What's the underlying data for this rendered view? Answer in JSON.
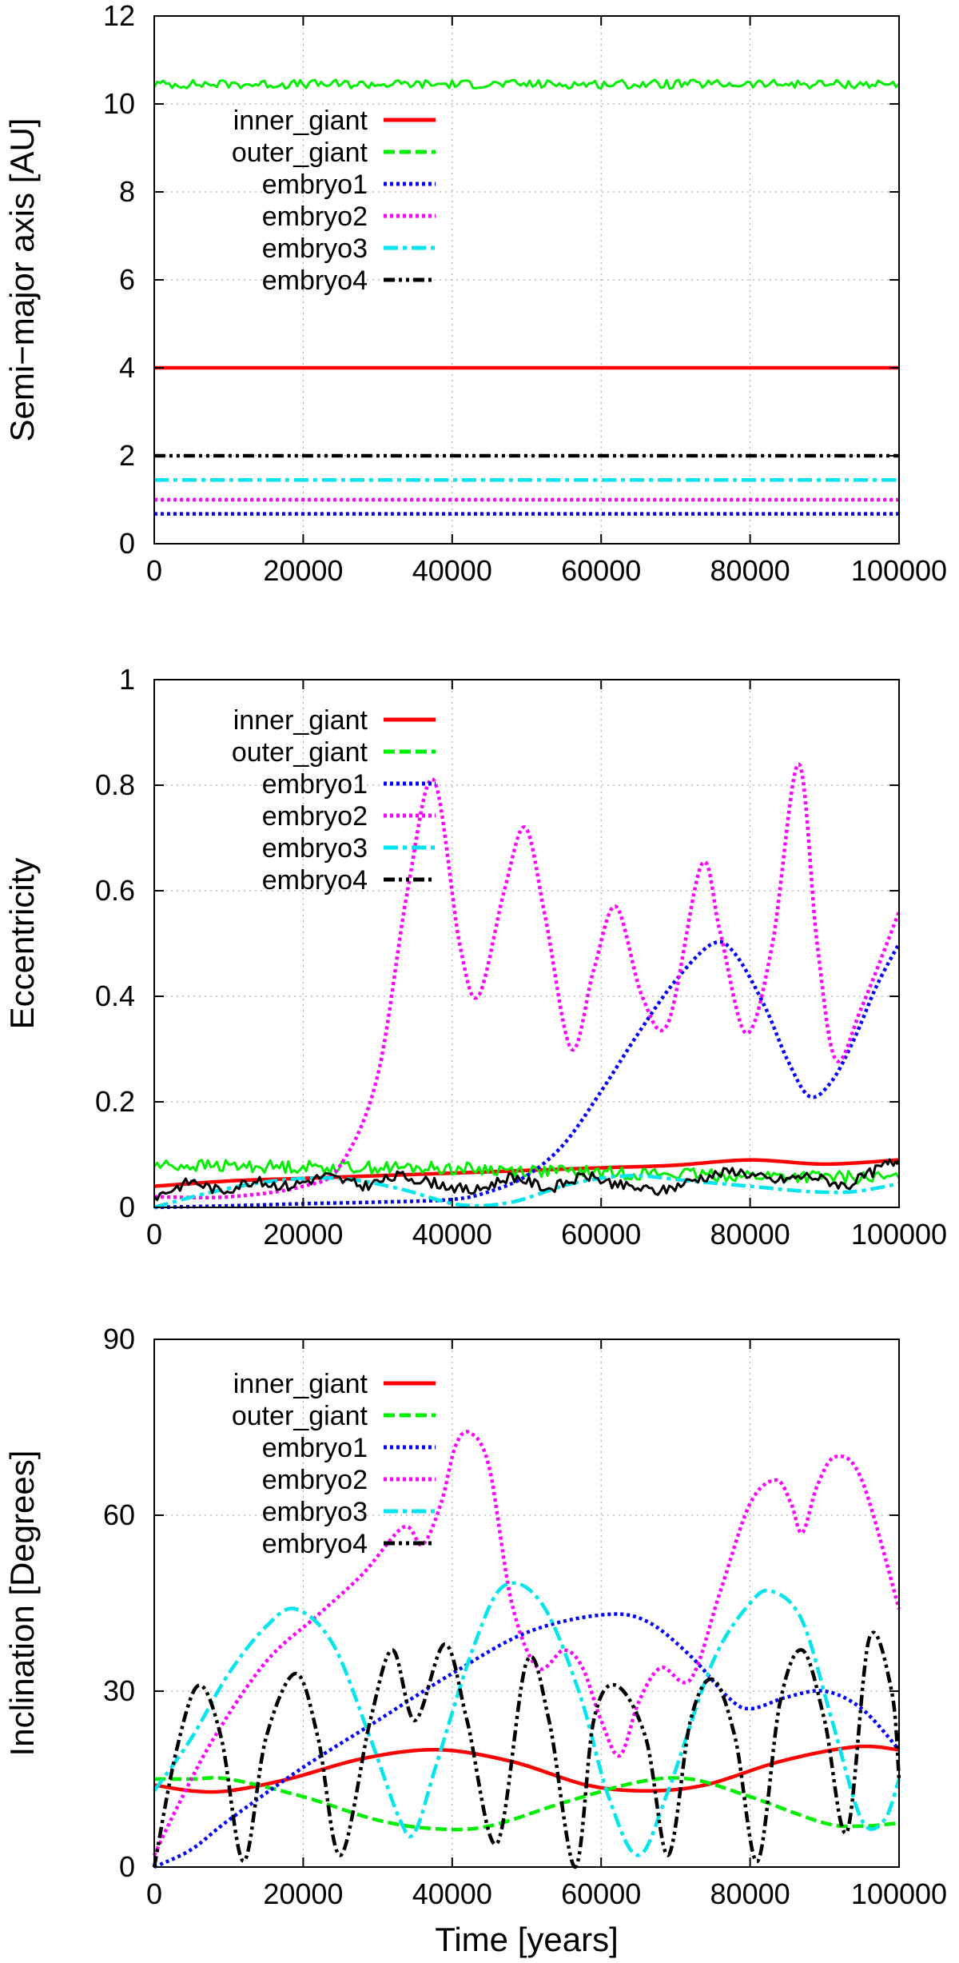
{
  "chart_data": [
    {
      "type": "line",
      "ylabel": "Semi−major axis [AU]",
      "xlabel": "",
      "xlim": [
        0,
        100000
      ],
      "ylim": [
        0,
        12
      ],
      "xticks": [
        0,
        20000,
        40000,
        60000,
        80000,
        100000
      ],
      "xtick_labels": [
        "0",
        "20000",
        "40000",
        "60000",
        "80000",
        "100000"
      ],
      "yticks": [
        0,
        2,
        4,
        6,
        8,
        10,
        12
      ],
      "ytick_labels": [
        "0",
        "2",
        "4",
        "6",
        "8",
        "10",
        "12"
      ],
      "grid": true,
      "legend_position": "top-left",
      "series": [
        {
          "name": "inner_giant",
          "color": "#ff0000",
          "style": "solid",
          "x": [
            0,
            100000
          ],
          "y": [
            4.0,
            4.0
          ]
        },
        {
          "name": "outer_giant",
          "color": "#00ee00",
          "style": "dashed",
          "x": [
            0,
            100000
          ],
          "y": [
            10.45,
            10.45
          ],
          "noise": 0.1
        },
        {
          "name": "embryo1",
          "color": "#0000ff",
          "style": "dotted",
          "x": [
            0,
            100000
          ],
          "y": [
            0.68,
            0.68
          ]
        },
        {
          "name": "embryo2",
          "color": "#ff00ff",
          "style": "dotted",
          "x": [
            0,
            100000
          ],
          "y": [
            1.0,
            1.0
          ]
        },
        {
          "name": "embryo3",
          "color": "#00e5ee",
          "style": "dashdot",
          "x": [
            0,
            100000
          ],
          "y": [
            1.45,
            1.45
          ]
        },
        {
          "name": "embryo4",
          "color": "#000000",
          "style": "dashdotdot",
          "x": [
            0,
            100000
          ],
          "y": [
            2.0,
            2.0
          ]
        }
      ]
    },
    {
      "type": "line",
      "ylabel": "Eccentricity",
      "xlabel": "",
      "xlim": [
        0,
        100000
      ],
      "ylim": [
        0,
        1
      ],
      "xticks": [
        0,
        20000,
        40000,
        60000,
        80000,
        100000
      ],
      "xtick_labels": [
        "0",
        "20000",
        "40000",
        "60000",
        "80000",
        "100000"
      ],
      "yticks": [
        0,
        0.2,
        0.4,
        0.6,
        0.8,
        1
      ],
      "ytick_labels": [
        "0",
        "0.2",
        "0.4",
        "0.6",
        "0.8",
        "1"
      ],
      "grid": true,
      "legend_position": "top-left",
      "series": [
        {
          "name": "inner_giant",
          "color": "#ff0000",
          "style": "solid",
          "x": [
            0,
            10000,
            20000,
            30000,
            40000,
            50000,
            60000,
            70000,
            80000,
            90000,
            100000
          ],
          "y": [
            0.04,
            0.05,
            0.055,
            0.06,
            0.065,
            0.07,
            0.075,
            0.08,
            0.09,
            0.082,
            0.09
          ]
        },
        {
          "name": "outer_giant",
          "color": "#00ee00",
          "style": "dashed",
          "x": [
            0,
            20000,
            40000,
            60000,
            80000,
            100000
          ],
          "y": [
            0.08,
            0.077,
            0.074,
            0.066,
            0.06,
            0.055
          ],
          "noise": 0.012
        },
        {
          "name": "embryo1",
          "color": "#0000ff",
          "style": "dotted",
          "x": [
            0,
            10000,
            20000,
            30000,
            40000,
            45000,
            50000,
            55000,
            60000,
            65000,
            70000,
            75000,
            78000,
            82000,
            85000,
            88000,
            91000,
            94000,
            97000,
            100000
          ],
          "y": [
            0.0,
            0.003,
            0.007,
            0.01,
            0.015,
            0.03,
            0.06,
            0.12,
            0.22,
            0.33,
            0.43,
            0.5,
            0.48,
            0.38,
            0.28,
            0.21,
            0.24,
            0.32,
            0.42,
            0.5
          ]
        },
        {
          "name": "embryo2",
          "color": "#ff00ff",
          "style": "dotted",
          "x": [
            0,
            10000,
            20000,
            25000,
            30000,
            34000,
            37500,
            41000,
            43500,
            47000,
            49800,
            52500,
            56000,
            59000,
            62000,
            65500,
            69000,
            73500,
            76000,
            79500,
            83000,
            86500,
            89000,
            91500,
            95000,
            100000
          ],
          "y": [
            0.02,
            0.02,
            0.04,
            0.08,
            0.25,
            0.6,
            0.81,
            0.5,
            0.4,
            0.6,
            0.72,
            0.55,
            0.3,
            0.45,
            0.57,
            0.4,
            0.35,
            0.65,
            0.52,
            0.33,
            0.5,
            0.84,
            0.5,
            0.28,
            0.38,
            0.56
          ]
        },
        {
          "name": "embryo3",
          "color": "#00e5ee",
          "style": "dashdot",
          "x": [
            0,
            8000,
            16000,
            25000,
            33000,
            41000,
            48000,
            56000,
            64000,
            72000,
            80000,
            88000,
            94000,
            100000
          ],
          "y": [
            0.0,
            0.03,
            0.05,
            0.055,
            0.035,
            0.005,
            0.01,
            0.045,
            0.06,
            0.05,
            0.04,
            0.03,
            0.03,
            0.045
          ]
        },
        {
          "name": "embryo4",
          "color": "#000000",
          "style": "dashdotdot",
          "x": [
            0,
            5000,
            9000,
            13000,
            18000,
            23000,
            28000,
            33000,
            38000,
            43000,
            48000,
            53000,
            58000,
            63000,
            68000,
            73000,
            78000,
            83000,
            88000,
            93000,
            98000,
            100000
          ],
          "y": [
            0.02,
            0.05,
            0.03,
            0.05,
            0.04,
            0.06,
            0.04,
            0.06,
            0.045,
            0.03,
            0.06,
            0.035,
            0.06,
            0.04,
            0.03,
            0.055,
            0.07,
            0.05,
            0.06,
            0.04,
            0.08,
            0.09
          ],
          "noise": 0.01
        }
      ]
    },
    {
      "type": "line",
      "ylabel": "Inclination [Degrees]",
      "xlabel": "Time [years]",
      "xlim": [
        0,
        100000
      ],
      "ylim": [
        0,
        90
      ],
      "xticks": [
        0,
        20000,
        40000,
        60000,
        80000,
        100000
      ],
      "xtick_labels": [
        "0",
        "20000",
        "40000",
        "60000",
        "80000",
        "100000"
      ],
      "yticks": [
        0,
        30,
        60,
        90
      ],
      "ytick_labels": [
        "0",
        "30",
        "60",
        "90"
      ],
      "grid": true,
      "legend_position": "top-left",
      "series": [
        {
          "name": "inner_giant",
          "color": "#ff0000",
          "style": "solid",
          "x": [
            0,
            5000,
            10000,
            18000,
            28000,
            38000,
            48000,
            58000,
            66000,
            74000,
            84000,
            94000,
            100000
          ],
          "y": [
            14,
            13,
            13,
            15,
            18.5,
            20,
            18,
            14,
            13,
            14,
            18,
            20.5,
            20
          ]
        },
        {
          "name": "outer_giant",
          "color": "#00ee00",
          "style": "dashed",
          "x": [
            0,
            5000,
            10000,
            20000,
            30000,
            38000,
            45000,
            55000,
            65000,
            72000,
            80000,
            90000,
            95000,
            100000
          ],
          "y": [
            15,
            15,
            15,
            12,
            8,
            6.5,
            7,
            11,
            14.5,
            15,
            12,
            7.5,
            7,
            7.5
          ]
        },
        {
          "name": "embryo1",
          "color": "#0000ff",
          "style": "dotted",
          "x": [
            0,
            5000,
            10000,
            20000,
            30000,
            40000,
            50000,
            60000,
            66000,
            72000,
            77000,
            80000,
            85000,
            90000,
            95000,
            100000
          ],
          "y": [
            0,
            3,
            8,
            17,
            25,
            33,
            40,
            43,
            42,
            36,
            29,
            27,
            29,
            30,
            27,
            20
          ]
        },
        {
          "name": "embryo2",
          "color": "#ff00ff",
          "style": "dotted",
          "x": [
            0,
            3000,
            8000,
            15000,
            22000,
            28000,
            33500,
            36000,
            38500,
            40500,
            42500,
            45000,
            48000,
            51500,
            55000,
            57500,
            60000,
            62500,
            65000,
            68000,
            72000,
            76000,
            80000,
            83500,
            85500,
            87000,
            89000,
            91500,
            95000,
            100000
          ],
          "y": [
            2,
            10,
            22,
            35,
            43,
            50,
            58,
            55,
            62,
            72,
            74,
            68,
            45,
            34,
            37,
            34,
            25,
            19,
            28,
            34,
            32,
            47,
            62,
            66,
            62,
            57,
            65,
            70,
            66,
            44
          ]
        },
        {
          "name": "embryo3",
          "color": "#00e5ee",
          "style": "dashdot",
          "x": [
            0,
            5000,
            10000,
            15000,
            19000,
            24000,
            29000,
            33000,
            35000,
            38000,
            43000,
            47000,
            52000,
            57000,
            61000,
            65000,
            69000,
            75000,
            80000,
            83000,
            87000,
            91000,
            95000,
            98000,
            100000
          ],
          "y": [
            13,
            22,
            33,
            41,
            44,
            38,
            22,
            8,
            6,
            18,
            38,
            48,
            45,
            30,
            12,
            2,
            13,
            35,
            45,
            47,
            42,
            25,
            8,
            8,
            15
          ]
        },
        {
          "name": "embryo4",
          "color": "#000000",
          "style": "dashdotdot",
          "x": [
            0,
            3000,
            6000,
            9000,
            12000,
            15000,
            19000,
            22000,
            25000,
            29000,
            32000,
            35000,
            39000,
            42000,
            46000,
            50000,
            53000,
            56500,
            59000,
            62000,
            66000,
            69000,
            72000,
            75000,
            78000,
            81000,
            84000,
            87000,
            90000,
            93000,
            96000,
            99000,
            100000
          ],
          "y": [
            0,
            20,
            31,
            22,
            1,
            22,
            33,
            22,
            2,
            25,
            37,
            25,
            38,
            25,
            4,
            35,
            25,
            0,
            25,
            31,
            22,
            2,
            25,
            32,
            22,
            1,
            28,
            37,
            25,
            6,
            39,
            30,
            15
          ]
        }
      ]
    }
  ]
}
